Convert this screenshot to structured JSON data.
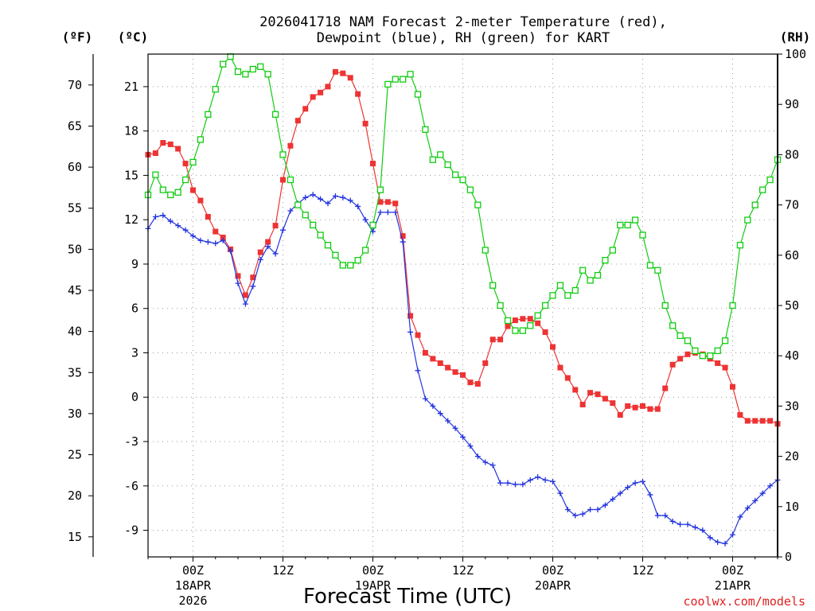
{
  "colors": {
    "temperature": "#ee3333",
    "dewpoint": "#2233dd",
    "rh": "#11cc11",
    "grid": "#999999"
  },
  "credit": "coolwx.com/models",
  "chart_data": {
    "type": "line",
    "title_lines": [
      "2026041718 NAM Forecast 2-meter Temperature (red),",
      "Dewpoint (blue), RH (green) for KART"
    ],
    "xlabel": "Forecast Time (UTC)",
    "units": {
      "fahrenheit": "(ºF)",
      "celsius": "(ºC)",
      "rh": "(RH)"
    },
    "x_start_hour": 18,
    "x_range_hours": [
      18,
      102
    ],
    "x_ticks": [
      {
        "hour": 24,
        "label": "00Z",
        "sub1": "18APR",
        "sub2": "2026"
      },
      {
        "hour": 36,
        "label": "12Z",
        "sub1": "",
        "sub2": ""
      },
      {
        "hour": 48,
        "label": "00Z",
        "sub1": "19APR",
        "sub2": ""
      },
      {
        "hour": 60,
        "label": "12Z",
        "sub1": "",
        "sub2": ""
      },
      {
        "hour": 72,
        "label": "00Z",
        "sub1": "20APR",
        "sub2": ""
      },
      {
        "hour": 84,
        "label": "12Z",
        "sub1": "",
        "sub2": ""
      },
      {
        "hour": 96,
        "label": "00Z",
        "sub1": "21APR",
        "sub2": ""
      }
    ],
    "celsius_range": [
      -10.8,
      23.2
    ],
    "celsius_ticks": [
      21,
      18,
      15,
      12,
      9,
      6,
      3,
      0,
      -3,
      -6,
      -9
    ],
    "fahrenheit_ticks": [
      70,
      65,
      60,
      55,
      50,
      45,
      40,
      35,
      30,
      25,
      20,
      15
    ],
    "rh_range": [
      0,
      100
    ],
    "rh_ticks": [
      100,
      90,
      80,
      70,
      60,
      50,
      40,
      30,
      20,
      10,
      0
    ],
    "series": [
      {
        "name": "Temperature",
        "unit": "C",
        "values": [
          16.4,
          16.5,
          17.2,
          17.1,
          16.8,
          15.8,
          14.0,
          13.3,
          12.2,
          11.2,
          10.8,
          10.0,
          8.2,
          6.9,
          8.1,
          9.8,
          10.5,
          11.6,
          14.7,
          17.0,
          18.7,
          19.5,
          20.3,
          20.6,
          21.0,
          22.0,
          21.9,
          21.6,
          20.5,
          18.5,
          15.8,
          13.2,
          13.2,
          13.1,
          10.9,
          5.5,
          4.2,
          3.0,
          2.6,
          2.3,
          2.0,
          1.7,
          1.5,
          1.0,
          0.9,
          2.3,
          3.9,
          3.9,
          4.8,
          5.2,
          5.3,
          5.3,
          5.0,
          4.4,
          3.4,
          2.0,
          1.3,
          0.5,
          -0.5,
          0.3,
          0.2,
          -0.1,
          -0.4,
          -1.2,
          -0.6,
          -0.7,
          -0.6,
          -0.8,
          -0.8,
          0.6,
          2.2,
          2.6,
          2.9,
          3.0,
          2.9,
          2.6,
          2.3,
          2.0,
          0.7,
          -1.2,
          -1.6,
          -1.6,
          -1.6,
          -1.6,
          -1.8
        ]
      },
      {
        "name": "Dewpoint",
        "unit": "C",
        "values": [
          11.4,
          12.2,
          12.3,
          11.9,
          11.6,
          11.3,
          10.9,
          10.6,
          10.5,
          10.4,
          10.6,
          9.9,
          7.7,
          6.3,
          7.5,
          9.3,
          10.2,
          9.7,
          11.3,
          12.6,
          13.1,
          13.5,
          13.7,
          13.4,
          13.1,
          13.6,
          13.5,
          13.3,
          12.9,
          12.0,
          11.2,
          12.5,
          12.5,
          12.5,
          10.5,
          4.4,
          1.8,
          -0.1,
          -0.6,
          -1.1,
          -1.6,
          -2.1,
          -2.7,
          -3.3,
          -4.0,
          -4.4,
          -4.6,
          -5.8,
          -5.8,
          -5.9,
          -5.9,
          -5.6,
          -5.4,
          -5.6,
          -5.7,
          -6.5,
          -7.6,
          -8.0,
          -7.9,
          -7.6,
          -7.6,
          -7.3,
          -6.9,
          -6.5,
          -6.1,
          -5.8,
          -5.7,
          -6.6,
          -8.0,
          -8.0,
          -8.4,
          -8.6,
          -8.6,
          -8.8,
          -9.0,
          -9.5,
          -9.8,
          -9.9,
          -9.3,
          -8.1,
          -7.5,
          -7.0,
          -6.5,
          -6.0,
          -5.6
        ]
      },
      {
        "name": "RH",
        "unit": "%",
        "values": [
          72,
          76,
          73,
          72,
          72.5,
          75,
          78.5,
          83,
          88,
          93,
          98,
          99.5,
          96.5,
          96,
          97,
          97.5,
          96,
          88,
          80,
          75,
          70,
          68,
          66,
          64,
          62,
          60,
          58,
          58,
          59,
          61,
          66,
          73,
          94,
          95,
          95,
          96,
          92,
          85,
          79,
          80,
          78,
          76,
          75,
          73,
          70,
          61,
          54,
          50,
          47,
          45,
          45,
          46,
          48,
          50,
          52,
          54,
          52,
          53,
          57,
          55,
          56,
          59,
          61,
          66,
          66,
          67,
          64,
          58,
          57,
          50,
          46,
          44,
          43,
          41,
          40,
          40,
          41,
          43,
          50,
          62,
          67,
          70,
          73,
          75,
          79
        ]
      }
    ]
  }
}
